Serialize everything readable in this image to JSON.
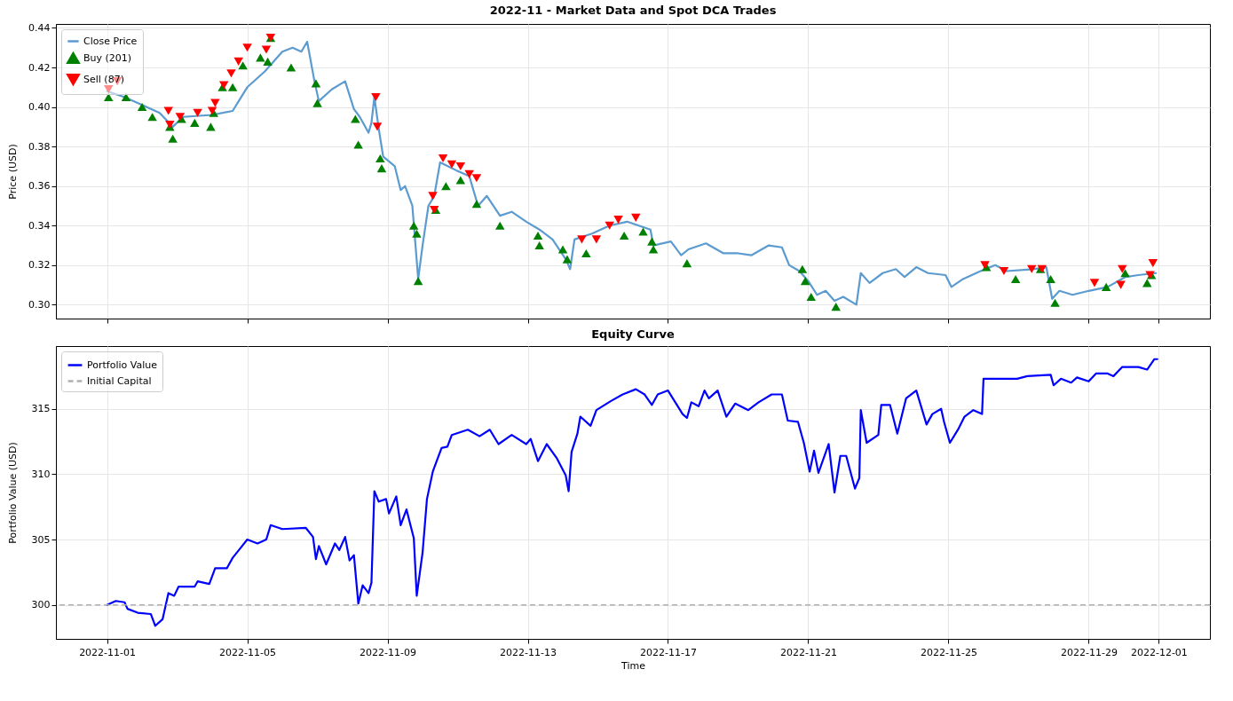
{
  "chart_data": [
    {
      "type": "line",
      "title": "2022-11 - Market Data and Spot DCA Trades",
      "ylabel": "Price (USD)",
      "xlim": [
        "2022-10-30T13:00",
        "2022-12-02T11:00"
      ],
      "xticks": [
        "2022-11-01",
        "2022-11-05",
        "2022-11-09",
        "2022-11-13",
        "2022-11-17",
        "2022-11-21",
        "2022-11-25",
        "2022-11-29",
        "2022-12-01"
      ],
      "ylim": [
        0.293,
        0.442
      ],
      "yticks": [
        {
          "value": 0.3,
          "label": "0.30"
        },
        0.32,
        0.34,
        0.36,
        0.38,
        {
          "value": 0.4,
          "label": "0.40"
        },
        0.42,
        0.44
      ],
      "tick_labels": "y",
      "grid": true,
      "legend": "top left",
      "series": [
        {
          "name": "Close Price",
          "type": "line",
          "color": "#5b9bd0",
          "x": [
            "2022-11-01T00:00",
            "2022-11-01T12:00",
            "2022-11-02T00:00",
            "2022-11-02T12:00",
            "2022-11-02T21:00",
            "2022-11-03T04:00",
            "2022-11-04T00:00",
            "2022-11-04T14:00",
            "2022-11-04T19:00",
            "2022-11-05T00:00",
            "2022-11-05T12:00",
            "2022-11-06T00:00",
            "2022-11-06T07:00",
            "2022-11-06T13:00",
            "2022-11-06T17:00",
            "2022-11-06T22:00",
            "2022-11-07T01:00",
            "2022-11-07T10:00",
            "2022-11-07T19:00",
            "2022-11-08T01:00",
            "2022-11-08T05:00",
            "2022-11-08T11:00",
            "2022-11-08T13:00",
            "2022-11-08T15:00",
            "2022-11-08T18:00",
            "2022-11-08T21:00",
            "2022-11-09T05:00",
            "2022-11-09T09:00",
            "2022-11-09T12:00",
            "2022-11-09T17:00",
            "2022-11-09T21:00",
            "2022-11-10T00:00",
            "2022-11-10T04:00",
            "2022-11-10T08:00",
            "2022-11-10T12:00",
            "2022-11-10T23:00",
            "2022-11-11T08:00",
            "2022-11-11T14:00",
            "2022-11-11T20:00",
            "2022-11-12T05:00",
            "2022-11-12T13:00",
            "2022-11-12T23:00",
            "2022-11-13T08:00",
            "2022-11-13T17:00",
            "2022-11-14T02:00",
            "2022-11-14T05:00",
            "2022-11-14T08:00",
            "2022-11-14T20:00",
            "2022-11-15T08:00",
            "2022-11-15T20:00",
            "2022-11-16T12:00",
            "2022-11-16T14:00",
            "2022-11-17T02:00",
            "2022-11-17T09:00",
            "2022-11-17T14:00",
            "2022-11-18T02:00",
            "2022-11-18T14:00",
            "2022-11-19T00:00",
            "2022-11-19T09:00",
            "2022-11-19T21:00",
            "2022-11-20T06:00",
            "2022-11-20T11:00",
            "2022-11-20T18:00",
            "2022-11-21T00:00",
            "2022-11-21T06:00",
            "2022-11-21T12:00",
            "2022-11-21T18:00",
            "2022-11-22T00:00",
            "2022-11-22T09:00",
            "2022-11-22T12:00",
            "2022-11-22T18:00",
            "2022-11-23T03:00",
            "2022-11-23T12:00",
            "2022-11-23T18:00",
            "2022-11-24T02:00",
            "2022-11-24T10:00",
            "2022-11-24T22:00",
            "2022-11-25T02:00",
            "2022-11-25T10:00",
            "2022-11-25T22:00",
            "2022-11-26T08:00",
            "2022-11-26T16:00",
            "2022-11-27T10:00",
            "2022-11-27T19:00",
            "2022-11-27T23:00",
            "2022-11-28T04:00",
            "2022-11-28T13:00",
            "2022-11-29T00:00",
            "2022-11-29T13:00",
            "2022-11-30T01:00",
            "2022-11-30T10:00",
            "2022-11-30T22:00"
          ],
          "values": [
            0.408,
            0.405,
            0.401,
            0.397,
            0.39,
            0.395,
            0.396,
            0.398,
            0.404,
            0.41,
            0.418,
            0.428,
            0.43,
            0.428,
            0.433,
            0.413,
            0.403,
            0.409,
            0.413,
            0.399,
            0.395,
            0.387,
            0.392,
            0.405,
            0.389,
            0.375,
            0.37,
            0.358,
            0.36,
            0.35,
            0.313,
            0.33,
            0.35,
            0.355,
            0.372,
            0.368,
            0.365,
            0.35,
            0.355,
            0.345,
            0.347,
            0.342,
            0.338,
            0.333,
            0.323,
            0.318,
            0.333,
            0.336,
            0.34,
            0.342,
            0.338,
            0.33,
            0.332,
            0.325,
            0.328,
            0.331,
            0.326,
            0.326,
            0.325,
            0.33,
            0.329,
            0.32,
            0.317,
            0.312,
            0.305,
            0.307,
            0.302,
            0.304,
            0.3,
            0.316,
            0.311,
            0.316,
            0.318,
            0.314,
            0.319,
            0.316,
            0.315,
            0.309,
            0.313,
            0.317,
            0.32,
            0.317,
            0.318,
            0.319,
            0.303,
            0.307,
            0.305,
            0.307,
            0.309,
            0.314,
            0.315,
            0.316
          ]
        },
        {
          "name": "Buy (201)",
          "type": "scatter",
          "marker": "triangle",
          "color": "#008000",
          "x": [
            "2022-11-01T01:00",
            "2022-11-01T13:00",
            "2022-11-02T00:00",
            "2022-11-02T07:00",
            "2022-11-02T19:00",
            "2022-11-02T21:00",
            "2022-11-03T03:00",
            "2022-11-03T12:00",
            "2022-11-03T23:00",
            "2022-11-04T01:00",
            "2022-11-04T07:00",
            "2022-11-04T14:00",
            "2022-11-04T21:00",
            "2022-11-05T09:00",
            "2022-11-05T14:00",
            "2022-11-05T16:00",
            "2022-11-06T06:00",
            "2022-11-06T23:00",
            "2022-11-07T00:00",
            "2022-11-08T02:00",
            "2022-11-08T04:00",
            "2022-11-08T19:00",
            "2022-11-08T20:00",
            "2022-11-09T18:00",
            "2022-11-09T20:00",
            "2022-11-09T21:00",
            "2022-11-10T09:00",
            "2022-11-10T16:00",
            "2022-11-11T02:00",
            "2022-11-11T13:00",
            "2022-11-12T05:00",
            "2022-11-13T07:00",
            "2022-11-13T08:00",
            "2022-11-14T00:00",
            "2022-11-14T03:00",
            "2022-11-14T16:00",
            "2022-11-15T18:00",
            "2022-11-16T07:00",
            "2022-11-16T13:00",
            "2022-11-16T14:00",
            "2022-11-17T13:00",
            "2022-11-20T20:00",
            "2022-11-20T22:00",
            "2022-11-21T02:00",
            "2022-11-21T19:00",
            "2022-11-26T02:00",
            "2022-11-26T22:00",
            "2022-11-27T15:00",
            "2022-11-27T22:00",
            "2022-11-28T01:00",
            "2022-11-29T12:00",
            "2022-11-30T01:00",
            "2022-11-30T16:00",
            "2022-11-30T19:00"
          ],
          "values": [
            0.405,
            0.405,
            0.4,
            0.395,
            0.39,
            0.384,
            0.394,
            0.392,
            0.39,
            0.397,
            0.41,
            0.41,
            0.421,
            0.425,
            0.423,
            0.435,
            0.42,
            0.412,
            0.402,
            0.394,
            0.381,
            0.374,
            0.369,
            0.34,
            0.336,
            0.312,
            0.348,
            0.36,
            0.363,
            0.351,
            0.34,
            0.335,
            0.33,
            0.328,
            0.323,
            0.326,
            0.335,
            0.337,
            0.332,
            0.328,
            0.321,
            0.318,
            0.312,
            0.304,
            0.299,
            0.319,
            0.313,
            0.318,
            0.313,
            0.301,
            0.309,
            0.316,
            0.311,
            0.315
          ]
        },
        {
          "name": "Sell (87)",
          "type": "scatter",
          "marker": "triangle-down",
          "color": "#ff0000",
          "x": [
            "2022-11-01T01:00",
            "2022-11-01T07:00",
            "2022-11-02T18:00",
            "2022-11-02T19:00",
            "2022-11-03T02:00",
            "2022-11-03T14:00",
            "2022-11-04T00:00",
            "2022-11-04T02:00",
            "2022-11-04T08:00",
            "2022-11-04T13:00",
            "2022-11-04T18:00",
            "2022-11-05T00:00",
            "2022-11-05T13:00",
            "2022-11-05T16:00",
            "2022-11-08T16:00",
            "2022-11-08T17:00",
            "2022-11-10T07:00",
            "2022-11-10T08:00",
            "2022-11-10T14:00",
            "2022-11-10T20:00",
            "2022-11-11T02:00",
            "2022-11-11T08:00",
            "2022-11-11T13:00",
            "2022-11-14T13:00",
            "2022-11-14T23:00",
            "2022-11-15T08:00",
            "2022-11-15T14:00",
            "2022-11-16T02:00",
            "2022-11-26T01:00",
            "2022-11-26T14:00",
            "2022-11-27T09:00",
            "2022-11-27T16:00",
            "2022-11-29T04:00",
            "2022-11-29T23:00",
            "2022-11-29T22:00",
            "2022-11-30T18:00",
            "2022-11-30T20:00"
          ],
          "values": [
            0.409,
            0.413,
            0.398,
            0.391,
            0.395,
            0.397,
            0.398,
            0.402,
            0.411,
            0.417,
            0.423,
            0.43,
            0.429,
            0.435,
            0.405,
            0.39,
            0.355,
            0.348,
            0.374,
            0.371,
            0.37,
            0.366,
            0.364,
            0.333,
            0.333,
            0.34,
            0.343,
            0.344,
            0.32,
            0.317,
            0.318,
            0.318,
            0.311,
            0.318,
            0.31,
            0.315,
            0.321
          ]
        }
      ]
    },
    {
      "type": "line",
      "title": "Equity Curve",
      "xlabel": "Time",
      "ylabel": "Portfolio Value (USD)",
      "xlim": [
        "2022-10-30T13:00",
        "2022-12-02T11:00"
      ],
      "xticks": [
        "2022-11-01",
        "2022-11-05",
        "2022-11-09",
        "2022-11-13",
        "2022-11-17",
        "2022-11-21",
        "2022-11-25",
        "2022-11-29",
        "2022-12-01"
      ],
      "ylim": [
        297.4,
        319.8
      ],
      "yticks": [
        300,
        305,
        310,
        315
      ],
      "grid": true,
      "legend": "top left",
      "ref_lines": [
        {
          "axis": "y",
          "value": 300,
          "label": "Initial Capital",
          "color": "#b0b0b0",
          "line_style": "dashed"
        }
      ],
      "series": [
        {
          "name": "Portfolio Value",
          "type": "line",
          "color": "#0000ff",
          "x": [
            "2022-11-01T00:00",
            "2022-11-01T06:00",
            "2022-11-01T12:00",
            "2022-11-01T14:00",
            "2022-11-01T21:00",
            "2022-11-02T06:00",
            "2022-11-02T09:00",
            "2022-11-02T14:00",
            "2022-11-02T18:00",
            "2022-11-02T22:00",
            "2022-11-03T01:00",
            "2022-11-03T12:00",
            "2022-11-03T14:00",
            "2022-11-03T22:00",
            "2022-11-04T02:00",
            "2022-11-04T10:00",
            "2022-11-04T14:00",
            "2022-11-04T19:00",
            "2022-11-05T00:00",
            "2022-11-05T07:00",
            "2022-11-05T13:00",
            "2022-11-05T16:00",
            "2022-11-06T00:00",
            "2022-11-06T16:00",
            "2022-11-06T21:00",
            "2022-11-06T23:00",
            "2022-11-07T01:00",
            "2022-11-07T06:00",
            "2022-11-07T12:00",
            "2022-11-07T15:00",
            "2022-11-07T19:00",
            "2022-11-07T22:00",
            "2022-11-08T01:00",
            "2022-11-08T04:00",
            "2022-11-08T07:00",
            "2022-11-08T11:00",
            "2022-11-08T13:00",
            "2022-11-08T15:00",
            "2022-11-08T18:00",
            "2022-11-08T23:00",
            "2022-11-09T01:00",
            "2022-11-09T06:00",
            "2022-11-09T09:00",
            "2022-11-09T13:00",
            "2022-11-09T18:00",
            "2022-11-09T20:00",
            "2022-11-10T00:00",
            "2022-11-10T03:00",
            "2022-11-10T07:00",
            "2022-11-10T13:00",
            "2022-11-10T17:00",
            "2022-11-10T20:00",
            "2022-11-11T07:00",
            "2022-11-11T15:00",
            "2022-11-11T22:00",
            "2022-11-12T04:00",
            "2022-11-12T13:00",
            "2022-11-12T23:00",
            "2022-11-13T02:00",
            "2022-11-13T07:00",
            "2022-11-13T13:00",
            "2022-11-13T20:00",
            "2022-11-14T02:00",
            "2022-11-14T04:00",
            "2022-11-14T06:00",
            "2022-11-14T10:00",
            "2022-11-14T12:00",
            "2022-11-14T19:00",
            "2022-11-14T23:00",
            "2022-11-15T09:00",
            "2022-11-15T17:00",
            "2022-11-16T02:00",
            "2022-11-16T08:00",
            "2022-11-16T13:00",
            "2022-11-16T17:00",
            "2022-11-17T00:00",
            "2022-11-17T05:00",
            "2022-11-17T10:00",
            "2022-11-17T13:00",
            "2022-11-17T16:00",
            "2022-11-17T21:00",
            "2022-11-18T01:00",
            "2022-11-18T04:00",
            "2022-11-18T10:00",
            "2022-11-18T16:00",
            "2022-11-18T22:00",
            "2022-11-19T07:00",
            "2022-11-19T14:00",
            "2022-11-19T23:00",
            "2022-11-20T06:00",
            "2022-11-20T10:00",
            "2022-11-20T17:00",
            "2022-11-20T21:00",
            "2022-11-21T01:00",
            "2022-11-21T04:00",
            "2022-11-21T07:00",
            "2022-11-21T14:00",
            "2022-11-21T18:00",
            "2022-11-21T22:00",
            "2022-11-22T02:00",
            "2022-11-22T08:00",
            "2022-11-22T11:00",
            "2022-11-22T12:00",
            "2022-11-22T16:00",
            "2022-11-23T00:00",
            "2022-11-23T02:00",
            "2022-11-23T08:00",
            "2022-11-23T13:00",
            "2022-11-23T19:00",
            "2022-11-24T02:00",
            "2022-11-24T09:00",
            "2022-11-24T13:00",
            "2022-11-24T19:00",
            "2022-11-24T21:00",
            "2022-11-25T01:00",
            "2022-11-25T07:00",
            "2022-11-25T11:00",
            "2022-11-25T17:00",
            "2022-11-25T23:00",
            "2022-11-26T00:00",
            "2022-11-26T09:00",
            "2022-11-26T23:00",
            "2022-11-27T06:00",
            "2022-11-27T22:00",
            "2022-11-28T00:00",
            "2022-11-28T05:00",
            "2022-11-28T12:00",
            "2022-11-28T16:00",
            "2022-11-29T00:00",
            "2022-11-29T05:00",
            "2022-11-29T13:00",
            "2022-11-29T17:00",
            "2022-11-29T23:00",
            "2022-11-30T10:00",
            "2022-11-30T16:00",
            "2022-11-30T21:00",
            "2022-11-30T23:00"
          ],
          "values": [
            300.0,
            300.3,
            300.2,
            299.7,
            299.4,
            299.3,
            298.4,
            298.9,
            300.9,
            300.7,
            301.4,
            301.4,
            301.8,
            301.6,
            302.8,
            302.8,
            303.6,
            304.3,
            305.0,
            304.7,
            305.0,
            306.1,
            305.8,
            305.9,
            305.2,
            303.5,
            304.5,
            303.1,
            304.7,
            304.2,
            305.2,
            303.4,
            303.8,
            300.1,
            301.5,
            300.9,
            301.7,
            308.7,
            307.9,
            308.1,
            307.0,
            308.3,
            306.1,
            307.3,
            305.1,
            300.7,
            304.0,
            308.1,
            310.2,
            312.0,
            312.1,
            313.0,
            313.4,
            312.9,
            313.4,
            312.3,
            313.0,
            312.3,
            312.7,
            311.0,
            312.3,
            311.2,
            309.9,
            308.7,
            311.7,
            313.1,
            314.4,
            313.7,
            314.9,
            315.6,
            316.1,
            316.5,
            316.1,
            315.3,
            316.1,
            316.4,
            315.5,
            314.6,
            314.3,
            315.5,
            315.2,
            316.4,
            315.8,
            316.4,
            314.4,
            315.4,
            314.9,
            315.5,
            316.1,
            316.1,
            314.1,
            314.0,
            312.4,
            310.2,
            311.8,
            310.1,
            312.3,
            308.6,
            311.4,
            311.4,
            308.9,
            309.7,
            314.9,
            312.4,
            313.0,
            315.3,
            315.3,
            313.1,
            315.8,
            316.4,
            313.8,
            314.6,
            315.0,
            314.0,
            312.4,
            313.5,
            314.4,
            314.9,
            314.6,
            317.3,
            317.3,
            317.3,
            317.5,
            317.6,
            316.8,
            317.3,
            317.0,
            317.4,
            317.1,
            317.7,
            317.7,
            317.5,
            318.2,
            318.2,
            318.0,
            318.8,
            318.8
          ]
        }
      ]
    }
  ]
}
